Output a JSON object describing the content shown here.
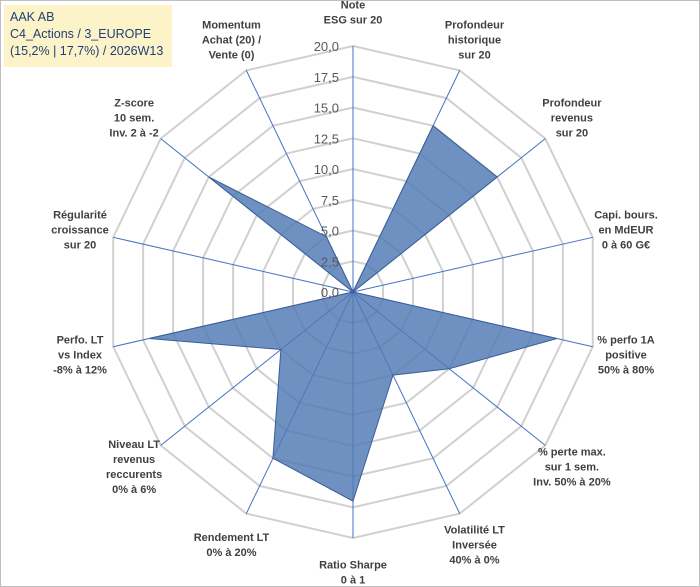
{
  "header": {
    "line1": "AAK AB",
    "line2": "C4_Actions / 3_EUROPE",
    "line3": "(15,2% | 17,7%) / 2026W13"
  },
  "chart_data": {
    "type": "radar",
    "axes": [
      {
        "label": [
          "Note",
          "ESG sur 20"
        ],
        "value": 0
      },
      {
        "label": [
          "Profondeur",
          "historique",
          "sur 20"
        ],
        "value": 15
      },
      {
        "label": [
          "Profondeur",
          "revenus",
          "sur 20"
        ],
        "value": 15
      },
      {
        "label": [
          "Capi. bours.",
          "en MdEUR",
          "0 à 60 G€"
        ],
        "value": 0
      },
      {
        "label": [
          "% perfo 1A",
          "positive",
          "50% à 80%"
        ],
        "value": 17
      },
      {
        "label": [
          "% perte max.",
          "sur 1 sem.",
          "Inv. 50% à 20%"
        ],
        "value": 10
      },
      {
        "label": [
          "Volatilité LT",
          "Inversée",
          "40% à 0%"
        ],
        "value": 7.5
      },
      {
        "label": [
          "Ratio Sharpe",
          "0 à 1"
        ],
        "value": 17
      },
      {
        "label": [
          "Rendement LT",
          "0% à 20%"
        ],
        "value": 15
      },
      {
        "label": [
          "Niveau LT",
          "revenus",
          "reccurents",
          "0% à 6%"
        ],
        "value": 7.5
      },
      {
        "label": [
          "Perfo. LT",
          "vs Index",
          "-8% à 12%"
        ],
        "value": 17
      },
      {
        "label": [
          "Régularité",
          "croissance",
          "sur 20"
        ],
        "value": 0
      },
      {
        "label": [
          "Z-score",
          "10 sem.",
          "Inv. 2 à -2"
        ],
        "value": 15
      },
      {
        "label": [
          "Momentum",
          "Achat (20) /",
          "Vente (0)"
        ],
        "value": 5
      }
    ],
    "r_ticks": [
      "0,0",
      "2,5",
      "5,0",
      "7,5",
      "10,0",
      "12,5",
      "15,0",
      "17,5",
      "20,0"
    ],
    "rlim": [
      0,
      20
    ],
    "grid": true,
    "colors": {
      "fill": "#4f79b4",
      "stroke": "#3a5f96",
      "axis": "#4472c4",
      "grid": "#d0d0d0"
    }
  }
}
